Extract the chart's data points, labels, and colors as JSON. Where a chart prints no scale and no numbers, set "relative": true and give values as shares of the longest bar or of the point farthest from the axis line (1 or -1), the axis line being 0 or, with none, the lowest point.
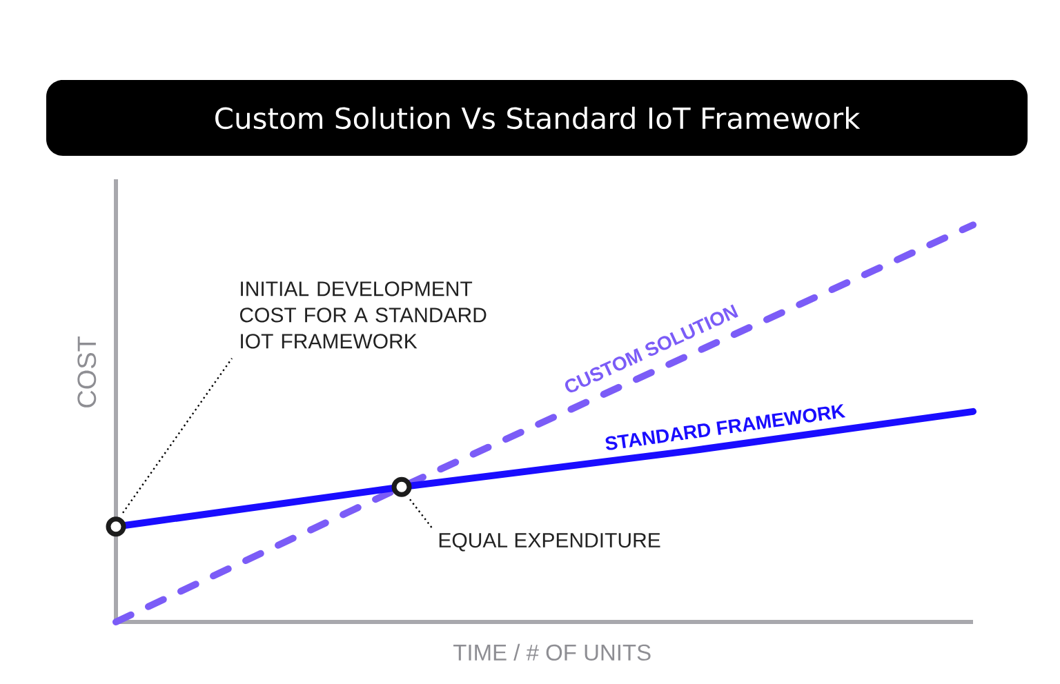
{
  "chart_data": {
    "type": "line",
    "title": "Custom Solution Vs Standard IoT Framework",
    "xlabel": "TIME / # OF UNITS",
    "ylabel": "COST",
    "relative": true,
    "legend": false,
    "categories": [
      null,
      null,
      null,
      null
    ],
    "series": [
      {
        "name": "CUSTOM SOLUTION",
        "color": "#7b5cf7",
        "values": [
          0,
          0.34,
          0.67,
          1
        ],
        "line_style": "dashed",
        "marker": "none"
      },
      {
        "name": "STANDARD FRAMEWORK",
        "color": "#1a0dff",
        "values": [
          null,
          0.34,
          0.43,
          0.53
        ],
        "line_style": "solid",
        "marker": "none"
      },
      {
        "color": "#1a0dff",
        "values": [
          0.24,
          0.34,
          null,
          null
        ],
        "line_style": "solid",
        "marker": "circle",
        "colors": [
          "#1c1c1c",
          "#1c1c1c",
          null,
          null
        ]
      }
    ],
    "annotations": [
      "INITIAL DEVELOPMENT COST FOR A STANDARD IOT FRAMEWORK",
      "EQUAL EXPENDITURE"
    ]
  }
}
